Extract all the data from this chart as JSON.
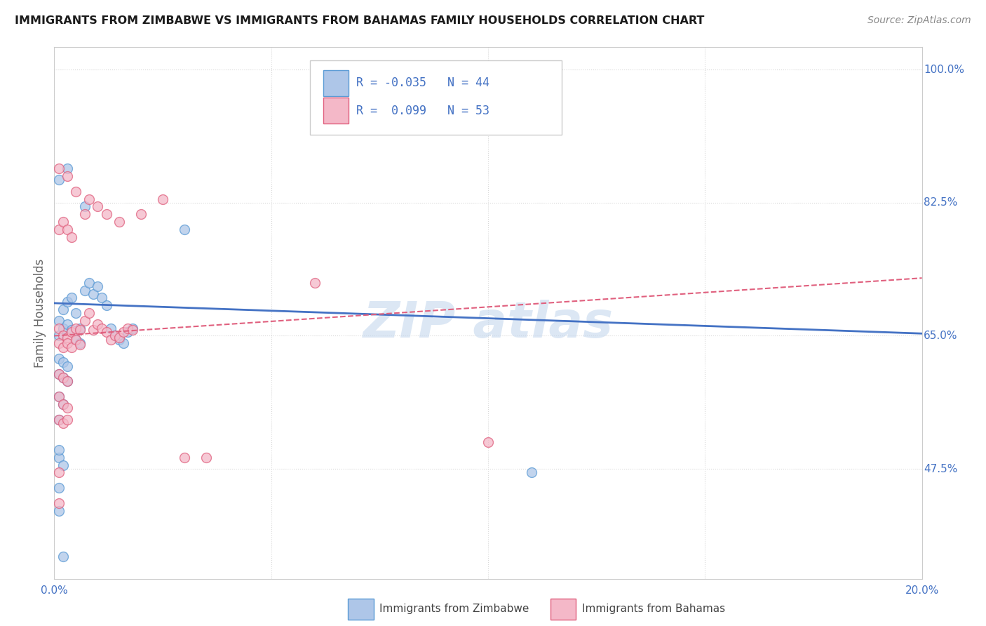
{
  "title": "IMMIGRANTS FROM ZIMBABWE VS IMMIGRANTS FROM BAHAMAS FAMILY HOUSEHOLDS CORRELATION CHART",
  "source": "Source: ZipAtlas.com",
  "ylabel": "Family Households",
  "xmin": 0.0,
  "xmax": 0.2,
  "ymin": 0.33,
  "ymax": 1.03,
  "yticks": [
    1.0,
    0.825,
    0.65,
    0.475
  ],
  "ytick_labels": [
    "100.0%",
    "82.5%",
    "65.0%",
    "47.5%"
  ],
  "xtick_labels": [
    "0.0%",
    "20.0%"
  ],
  "series": [
    {
      "name": "Immigrants from Zimbabwe",
      "color_fill": "#aec6e8",
      "color_edge": "#5b9bd5",
      "R": -0.035,
      "N": 44,
      "line_color": "#4472c4",
      "line_style": "solid",
      "points": [
        [
          0.001,
          0.67
        ],
        [
          0.002,
          0.685
        ],
        [
          0.003,
          0.695
        ],
        [
          0.004,
          0.7
        ],
        [
          0.005,
          0.68
        ],
        [
          0.006,
          0.66
        ],
        [
          0.007,
          0.71
        ],
        [
          0.008,
          0.72
        ],
        [
          0.009,
          0.705
        ],
        [
          0.01,
          0.715
        ],
        [
          0.011,
          0.7
        ],
        [
          0.012,
          0.69
        ],
        [
          0.013,
          0.66
        ],
        [
          0.014,
          0.65
        ],
        [
          0.015,
          0.645
        ],
        [
          0.016,
          0.64
        ],
        [
          0.017,
          0.655
        ],
        [
          0.018,
          0.66
        ],
        [
          0.001,
          0.855
        ],
        [
          0.003,
          0.87
        ],
        [
          0.007,
          0.82
        ],
        [
          0.03,
          0.79
        ],
        [
          0.001,
          0.65
        ],
        [
          0.002,
          0.66
        ],
        [
          0.003,
          0.665
        ],
        [
          0.004,
          0.658
        ],
        [
          0.005,
          0.645
        ],
        [
          0.006,
          0.64
        ],
        [
          0.001,
          0.62
        ],
        [
          0.002,
          0.615
        ],
        [
          0.003,
          0.61
        ],
        [
          0.001,
          0.6
        ],
        [
          0.002,
          0.595
        ],
        [
          0.003,
          0.59
        ],
        [
          0.001,
          0.57
        ],
        [
          0.002,
          0.56
        ],
        [
          0.001,
          0.54
        ],
        [
          0.001,
          0.49
        ],
        [
          0.002,
          0.48
        ],
        [
          0.001,
          0.45
        ],
        [
          0.001,
          0.42
        ],
        [
          0.002,
          0.36
        ],
        [
          0.11,
          0.47
        ],
        [
          0.001,
          0.5
        ]
      ]
    },
    {
      "name": "Immigrants from Bahamas",
      "color_fill": "#f4b8c8",
      "color_edge": "#e0607e",
      "R": 0.099,
      "N": 53,
      "line_color": "#e0607e",
      "line_style": "dashed",
      "points": [
        [
          0.001,
          0.66
        ],
        [
          0.002,
          0.65
        ],
        [
          0.003,
          0.648
        ],
        [
          0.004,
          0.655
        ],
        [
          0.005,
          0.66
        ],
        [
          0.006,
          0.658
        ],
        [
          0.007,
          0.67
        ],
        [
          0.008,
          0.68
        ],
        [
          0.009,
          0.658
        ],
        [
          0.01,
          0.665
        ],
        [
          0.011,
          0.66
        ],
        [
          0.012,
          0.655
        ],
        [
          0.013,
          0.645
        ],
        [
          0.014,
          0.65
        ],
        [
          0.015,
          0.648
        ],
        [
          0.016,
          0.655
        ],
        [
          0.017,
          0.66
        ],
        [
          0.018,
          0.658
        ],
        [
          0.001,
          0.87
        ],
        [
          0.003,
          0.86
        ],
        [
          0.005,
          0.84
        ],
        [
          0.008,
          0.83
        ],
        [
          0.01,
          0.82
        ],
        [
          0.012,
          0.81
        ],
        [
          0.015,
          0.8
        ],
        [
          0.02,
          0.81
        ],
        [
          0.025,
          0.83
        ],
        [
          0.001,
          0.79
        ],
        [
          0.002,
          0.8
        ],
        [
          0.003,
          0.79
        ],
        [
          0.004,
          0.78
        ],
        [
          0.007,
          0.81
        ],
        [
          0.06,
          0.72
        ],
        [
          0.001,
          0.64
        ],
        [
          0.002,
          0.635
        ],
        [
          0.003,
          0.64
        ],
        [
          0.004,
          0.635
        ],
        [
          0.005,
          0.645
        ],
        [
          0.006,
          0.638
        ],
        [
          0.001,
          0.6
        ],
        [
          0.002,
          0.595
        ],
        [
          0.003,
          0.59
        ],
        [
          0.001,
          0.57
        ],
        [
          0.002,
          0.56
        ],
        [
          0.003,
          0.555
        ],
        [
          0.001,
          0.54
        ],
        [
          0.002,
          0.535
        ],
        [
          0.003,
          0.54
        ],
        [
          0.03,
          0.49
        ],
        [
          0.035,
          0.49
        ],
        [
          0.001,
          0.47
        ],
        [
          0.001,
          0.43
        ],
        [
          0.1,
          0.51
        ]
      ]
    }
  ],
  "legend_color": "#4472c4",
  "background_color": "#ffffff",
  "grid_color": "#d8d8d8",
  "grid_style": "dotted",
  "watermark_text": "ZIP atlas",
  "watermark_color": "#c5d8ee",
  "marker_size": 100,
  "marker_alpha": 0.75,
  "marker_linewidth": 1.0
}
